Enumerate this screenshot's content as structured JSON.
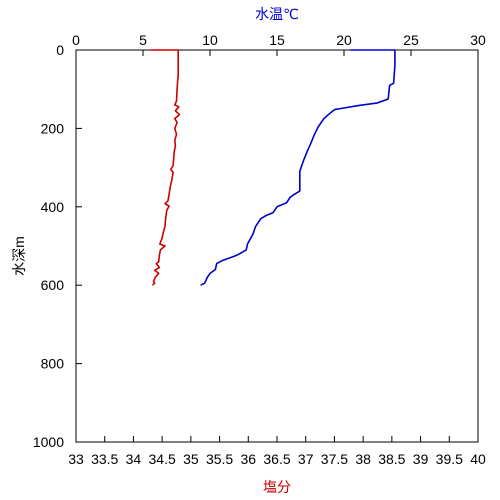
{
  "chart_data": {
    "type": "line",
    "title": "",
    "ylabel": "水深m",
    "y_axis": {
      "ylim": [
        1000,
        0
      ],
      "ticks": [
        0,
        200,
        400,
        600,
        800,
        1000
      ],
      "inverted": true
    },
    "x_top": {
      "label": "水温℃",
      "label_color": "#0000cc",
      "xlim": [
        0,
        30
      ],
      "ticks": [
        0,
        5,
        10,
        15,
        20,
        25,
        30
      ]
    },
    "x_bottom": {
      "label": "塩分",
      "label_color": "#cc0000",
      "xlim": [
        33,
        40
      ],
      "ticks": [
        "33",
        "33.5",
        "34",
        "34.5",
        "35",
        "35.5",
        "36",
        "36.5",
        "37",
        "37.5",
        "38",
        "38.5",
        "39",
        "39.5",
        "40"
      ]
    },
    "grid": false,
    "legend": "none",
    "series": [
      {
        "axis": "top",
        "color": "#0000cc",
        "points": [
          [
            20.5,
            0
          ],
          [
            23.8,
            0
          ],
          [
            23.8,
            40
          ],
          [
            23.7,
            85
          ],
          [
            23.4,
            90
          ],
          [
            23.3,
            125
          ],
          [
            22.5,
            135
          ],
          [
            21.0,
            142
          ],
          [
            20.0,
            148
          ],
          [
            19.3,
            152
          ],
          [
            19.0,
            160
          ],
          [
            18.5,
            175
          ],
          [
            18.1,
            195
          ],
          [
            17.8,
            215
          ],
          [
            17.5,
            240
          ],
          [
            17.3,
            255
          ],
          [
            17.0,
            280
          ],
          [
            16.8,
            300
          ],
          [
            16.7,
            310
          ],
          [
            16.7,
            360
          ],
          [
            16.3,
            368
          ],
          [
            16.0,
            375
          ],
          [
            15.7,
            390
          ],
          [
            15.0,
            400
          ],
          [
            14.7,
            415
          ],
          [
            14.2,
            422
          ],
          [
            13.8,
            430
          ],
          [
            13.4,
            450
          ],
          [
            13.2,
            470
          ],
          [
            12.8,
            495
          ],
          [
            12.7,
            510
          ],
          [
            12.2,
            520
          ],
          [
            11.9,
            525
          ],
          [
            11.5,
            530
          ],
          [
            11.0,
            536
          ],
          [
            10.5,
            545
          ],
          [
            10.4,
            560
          ],
          [
            10.0,
            570
          ],
          [
            9.8,
            580
          ],
          [
            9.6,
            595
          ],
          [
            9.3,
            600
          ]
        ]
      },
      {
        "axis": "bottom",
        "color": "#cc0000",
        "points": [
          [
            34.3,
            0
          ],
          [
            34.78,
            0
          ],
          [
            34.78,
            65
          ],
          [
            34.77,
            80
          ],
          [
            34.76,
            100
          ],
          [
            34.75,
            130
          ],
          [
            34.72,
            140
          ],
          [
            34.79,
            145
          ],
          [
            34.73,
            155
          ],
          [
            34.8,
            165
          ],
          [
            34.72,
            175
          ],
          [
            34.76,
            185
          ],
          [
            34.72,
            200
          ],
          [
            34.75,
            215
          ],
          [
            34.72,
            230
          ],
          [
            34.73,
            245
          ],
          [
            34.71,
            260
          ],
          [
            34.7,
            280
          ],
          [
            34.69,
            295
          ],
          [
            34.65,
            305
          ],
          [
            34.69,
            312
          ],
          [
            34.67,
            330
          ],
          [
            34.64,
            350
          ],
          [
            34.62,
            370
          ],
          [
            34.6,
            385
          ],
          [
            34.55,
            392
          ],
          [
            34.62,
            398
          ],
          [
            34.58,
            410
          ],
          [
            34.56,
            430
          ],
          [
            34.55,
            450
          ],
          [
            34.52,
            465
          ],
          [
            34.5,
            480
          ],
          [
            34.46,
            495
          ],
          [
            34.55,
            500
          ],
          [
            34.47,
            510
          ],
          [
            34.45,
            525
          ],
          [
            34.44,
            540
          ],
          [
            34.4,
            545
          ],
          [
            34.45,
            555
          ],
          [
            34.37,
            562
          ],
          [
            34.44,
            570
          ],
          [
            34.38,
            580
          ],
          [
            34.35,
            590
          ],
          [
            34.37,
            595
          ],
          [
            34.33,
            600
          ]
        ]
      }
    ]
  }
}
